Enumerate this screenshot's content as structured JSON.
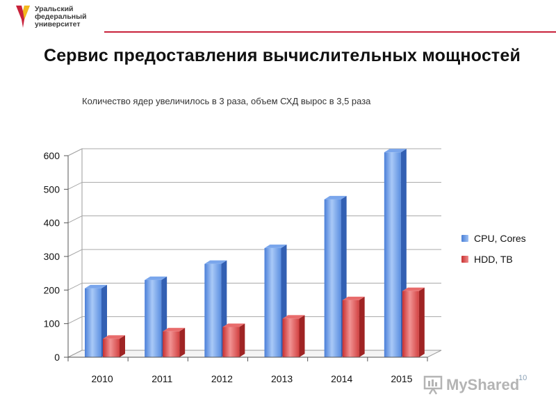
{
  "header": {
    "logo_lines": [
      "Уральский",
      "федеральный",
      "университет"
    ],
    "accent_color": "#c8213a"
  },
  "slide": {
    "title": "Сервис предоставления вычислительных мощностей",
    "subtitle": "Количество ядер увеличилось в 3 раза, объем СХД вырос в 3,5 раза",
    "page_number": "10"
  },
  "watermark": {
    "text": "MyShared"
  },
  "chart_data": {
    "type": "bar",
    "categories": [
      "2010",
      "2011",
      "2012",
      "2013",
      "2014",
      "2015"
    ],
    "series": [
      {
        "name": "CPU, Cores",
        "color": "#5b8fe0",
        "values": [
          205,
          230,
          278,
          325,
          470,
          610
        ]
      },
      {
        "name": "HDD, TB",
        "color": "#e04848",
        "values": [
          55,
          77,
          90,
          115,
          170,
          197
        ]
      }
    ],
    "yticks": [
      "0",
      "100",
      "200",
      "300",
      "400",
      "500",
      "600"
    ],
    "ylim": [
      0,
      600
    ],
    "grid": true,
    "legend": "right",
    "style": "3d"
  }
}
